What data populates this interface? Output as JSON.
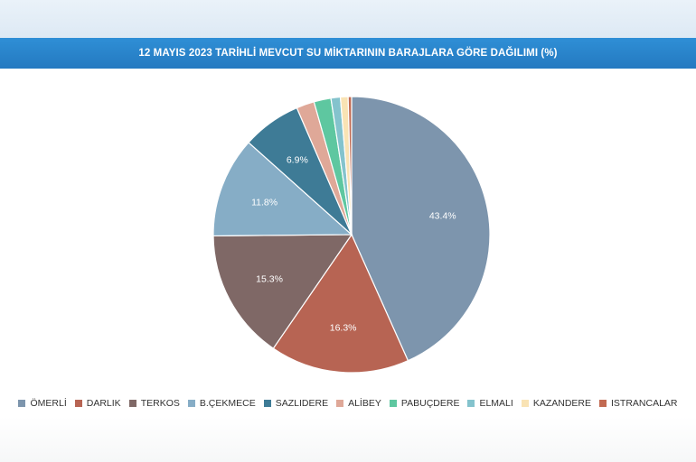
{
  "header": {
    "title": "12 MAYIS 2023 TARİHLİ MEVCUT SU MİKTARININ BARAJLARA GÖRE DAĞILIMI (%)"
  },
  "chart_data": {
    "type": "pie",
    "title": "12 MAYIS 2023 TARİHLİ MEVCUT SU MİKTARININ BARAJLARA GÖRE DAĞILIMI (%)",
    "start_angle_deg": 0,
    "direction": "clockwise",
    "legend_position": "bottom",
    "slices": [
      {
        "name": "ÖMERLİ",
        "value": 43.4,
        "label": "43.4%",
        "color": "#7d95ad"
      },
      {
        "name": "DARLIK",
        "value": 16.3,
        "label": "16.3%",
        "color": "#b76453"
      },
      {
        "name": "TERKOS",
        "value": 15.3,
        "label": "15.3%",
        "color": "#7f6866"
      },
      {
        "name": "B.ÇEKMECE",
        "value": 11.8,
        "label": "11.8%",
        "color": "#86adc6"
      },
      {
        "name": "SAZLIDERE",
        "value": 6.9,
        "label": "6.9%",
        "color": "#3e7b96"
      },
      {
        "name": "ALİBEY",
        "value": 2.1,
        "label": "",
        "color": "#dfa898"
      },
      {
        "name": "PABUÇDERE",
        "value": 2.0,
        "label": "",
        "color": "#5ec7a0"
      },
      {
        "name": "ELMALI",
        "value": 1.1,
        "label": "",
        "color": "#84c3cd"
      },
      {
        "name": "KAZANDERE",
        "value": 0.9,
        "label": "",
        "color": "#f9e3b4"
      },
      {
        "name": "ISTRANCALAR",
        "value": 0.4,
        "label": "",
        "color": "#c26a52"
      }
    ]
  }
}
